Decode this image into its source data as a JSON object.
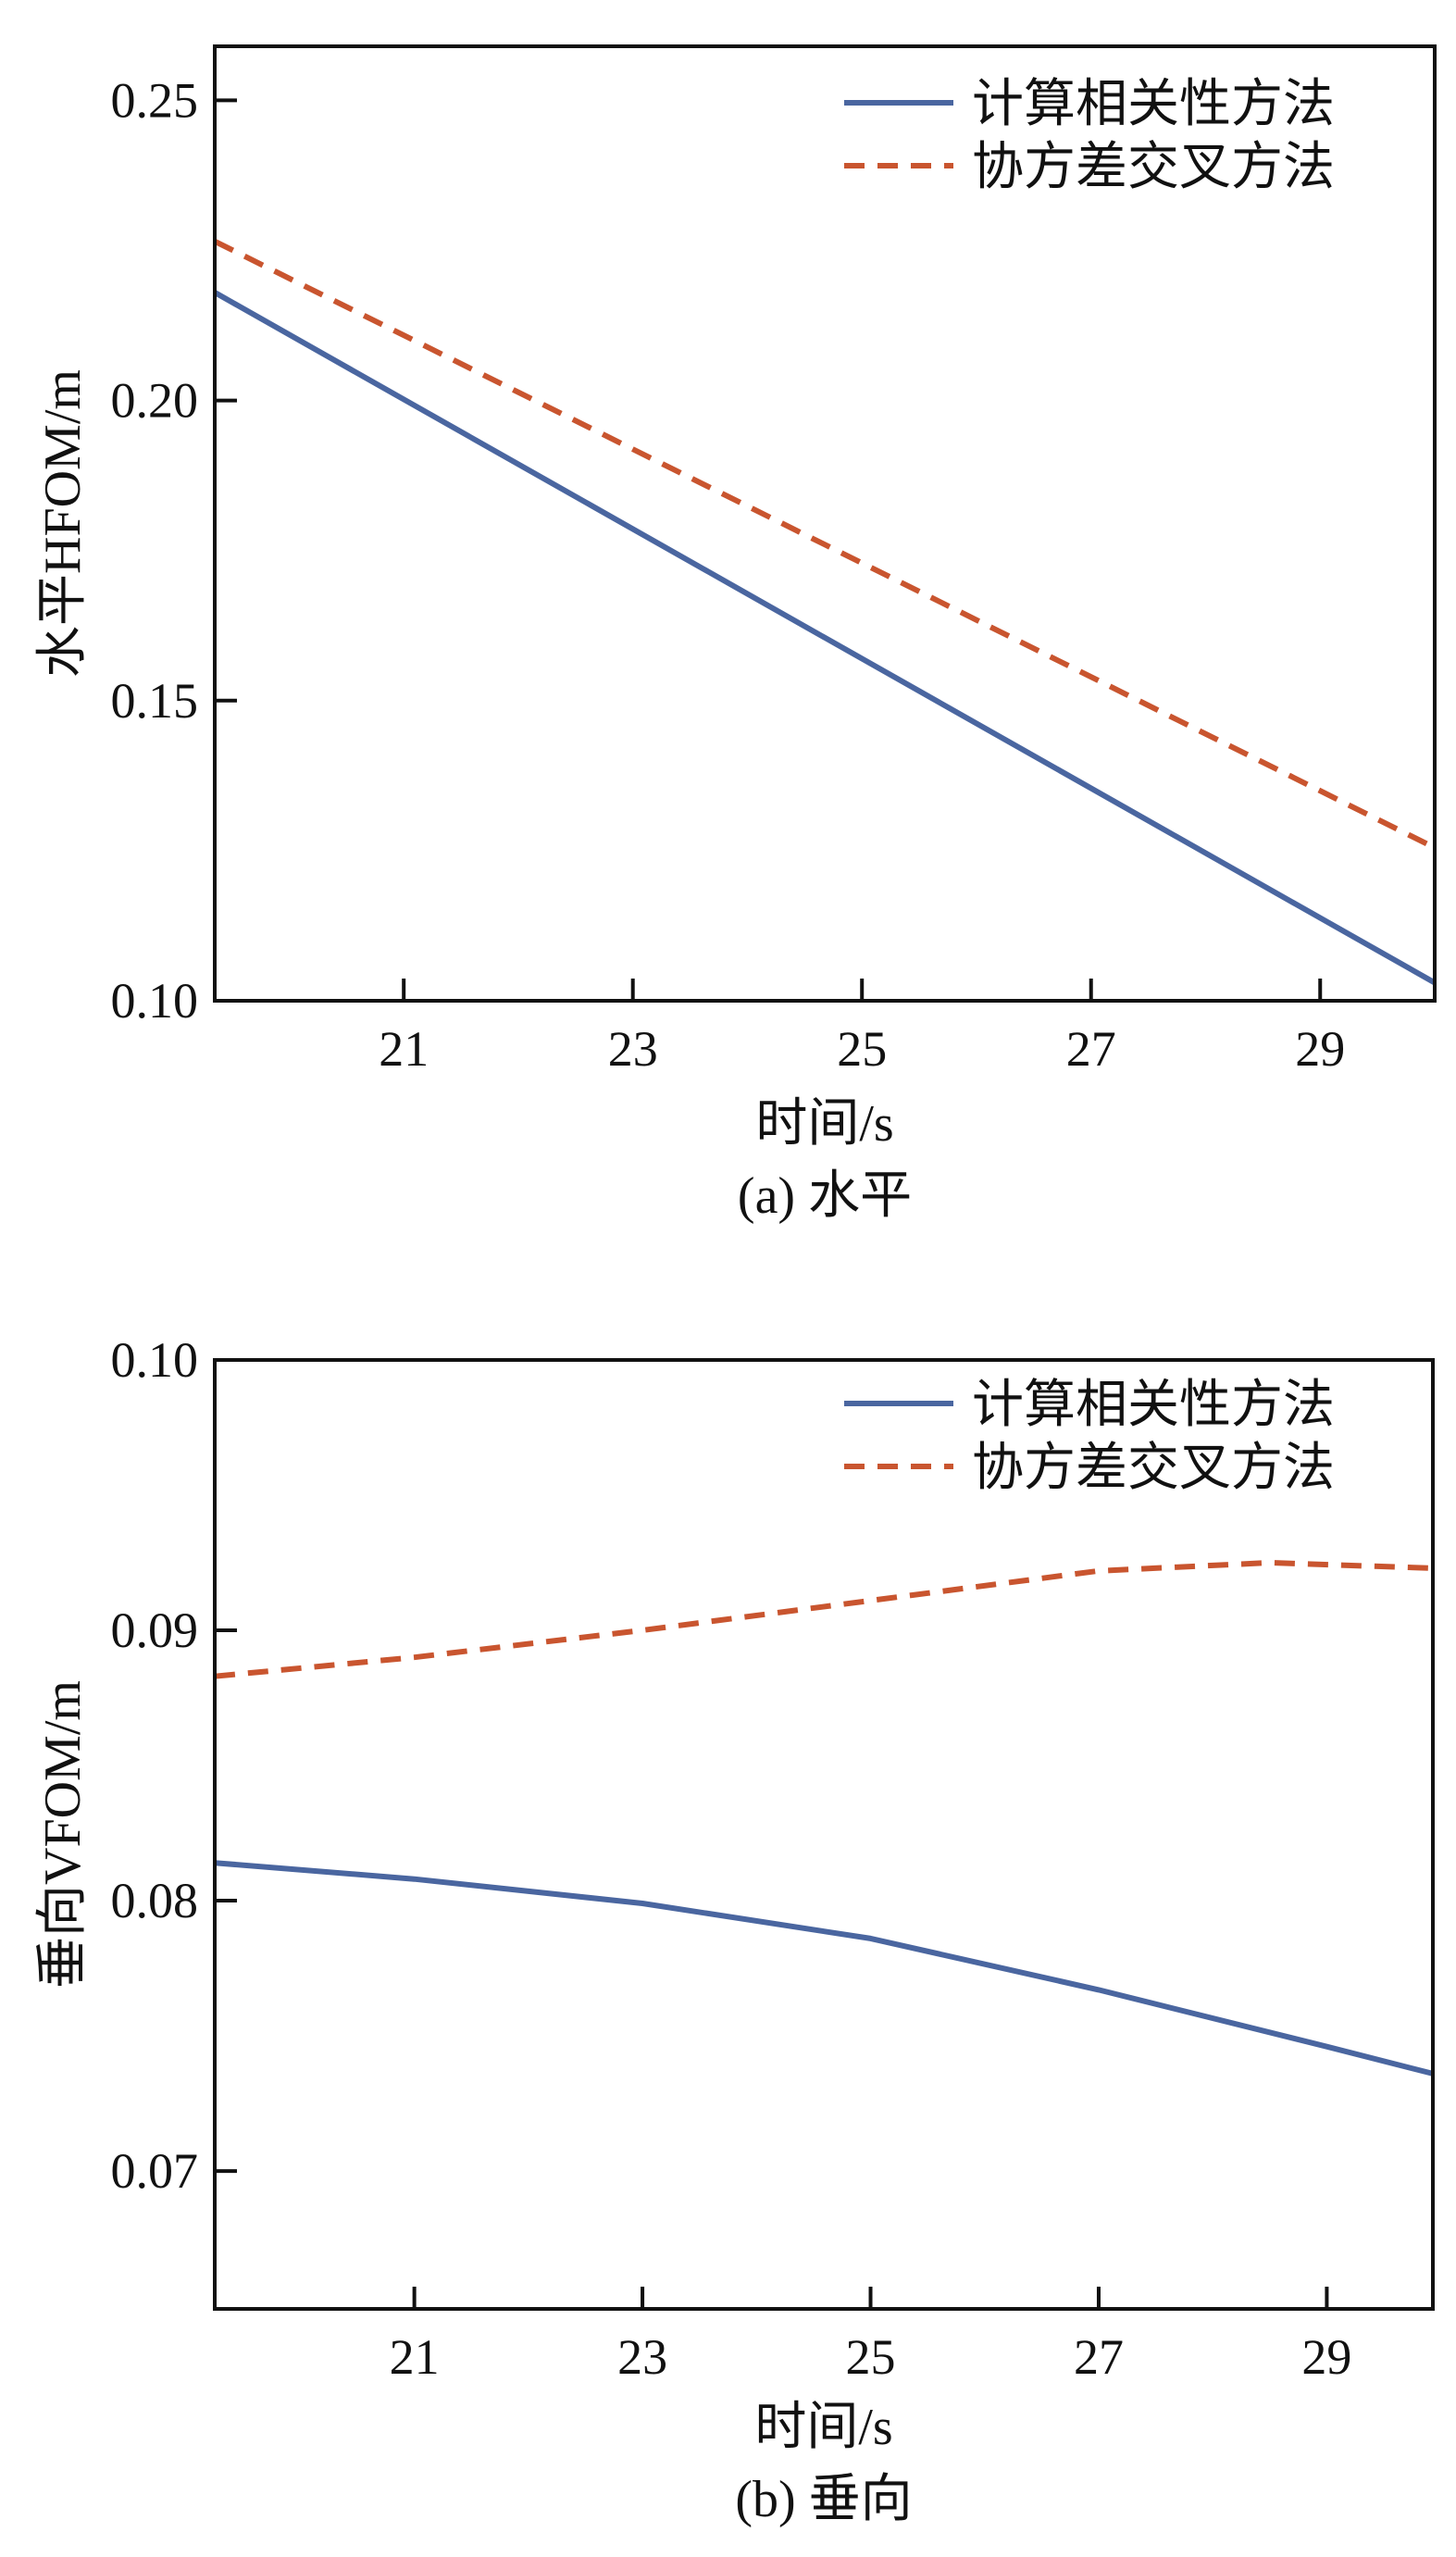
{
  "colors": {
    "series1": "#4a66a0",
    "series2": "#c9552f",
    "axis": "#111111"
  },
  "chart_data": [
    {
      "type": "line",
      "caption": "(a) 水平",
      "xlabel": "时间/s",
      "ylabel": "水平HFOM/m",
      "xlim": [
        19.35,
        30.0
      ],
      "ylim": [
        0.1,
        0.259
      ],
      "xticks": [
        21,
        23,
        25,
        27,
        29
      ],
      "xtick_labels": [
        "21",
        "23",
        "25",
        "27",
        "29"
      ],
      "yticks": [
        0.1,
        0.15,
        0.2,
        0.25
      ],
      "ytick_labels": [
        "0.10",
        "0.15",
        "0.20",
        "0.25"
      ],
      "legend_position": "top-right",
      "series": [
        {
          "name": "计算相关性方法",
          "style": "solid",
          "x": [
            19.35,
            30.0
          ],
          "y": [
            0.218,
            0.103
          ]
        },
        {
          "name": "协方差交叉方法",
          "style": "dashed",
          "x": [
            19.35,
            30.0
          ],
          "y": [
            0.2265,
            0.1255
          ]
        }
      ]
    },
    {
      "type": "line",
      "caption": "(b) 垂向",
      "xlabel": "时间/s",
      "ylabel": "垂向VFOM/m",
      "xlim": [
        19.25,
        29.93
      ],
      "ylim": [
        0.0649,
        0.1
      ],
      "xticks": [
        21,
        23,
        25,
        27,
        29
      ],
      "xtick_labels": [
        "21",
        "23",
        "25",
        "27",
        "29"
      ],
      "yticks": [
        0.07,
        0.08,
        0.09,
        0.1
      ],
      "ytick_labels": [
        "0.07",
        "0.08",
        "0.09",
        "0.10"
      ],
      "legend_position": "top-right",
      "series": [
        {
          "name": "计算相关性方法",
          "style": "solid",
          "x": [
            19.25,
            21,
            23,
            25,
            27,
            29,
            29.93
          ],
          "y": [
            0.0814,
            0.0808,
            0.0799,
            0.0786,
            0.0767,
            0.0746,
            0.0736
          ]
        },
        {
          "name": "协方差交叉方法",
          "style": "dashed",
          "x": [
            19.25,
            21,
            23,
            25,
            27,
            28.5,
            29.93
          ],
          "y": [
            0.0883,
            0.089,
            0.09,
            0.0911,
            0.0922,
            0.0925,
            0.0923
          ]
        }
      ]
    }
  ]
}
